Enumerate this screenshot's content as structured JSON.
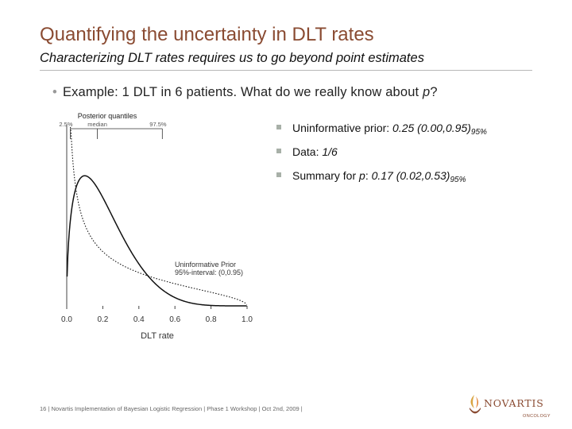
{
  "slide": {
    "title": "Quantifying the uncertainty in DLT rates",
    "subtitle": "Characterizing DLT rates requires us to go beyond point estimates",
    "main_bullet": {
      "text_a": "Example: 1 DLT in 6 patients. What do we really know about ",
      "var_p": "p",
      "text_b": "?"
    }
  },
  "bullets": {
    "b1": {
      "label": "Uninformative prior: ",
      "value": "0.25 (0.00,0.95)",
      "sub": "95%"
    },
    "b2": {
      "label": "Data: ",
      "value": "1/6"
    },
    "b3": {
      "label": "Summary for ",
      "var_p": "p",
      "colon": ": ",
      "value": "0.17 (0.02,0.53)",
      "sub": "95%"
    }
  },
  "chart_data": {
    "type": "line",
    "xlabel": "DLT rate",
    "x_ticks": [
      "0.0",
      "0.2",
      "0.4",
      "0.6",
      "0.8",
      "1.0"
    ],
    "xlim": [
      0,
      1
    ],
    "posterior_quantiles": {
      "title": "Posterior quantiles",
      "labels": [
        "2.5%",
        "median",
        "97.5%"
      ],
      "values": [
        0.02,
        0.17,
        0.53
      ]
    },
    "series": [
      {
        "name": "Posterior",
        "style": "solid",
        "distribution": "beta",
        "a": 1.5,
        "b": 5.5
      },
      {
        "name": "Uninformative Prior",
        "style": "dotted",
        "distribution": "beta",
        "a": 0.5,
        "b": 1.5
      }
    ],
    "annotation": {
      "line1": "Uninformative Prior",
      "line2": "95%-interval: (0,0.95)"
    }
  },
  "footer": "16 | Novartis Implementation of Bayesian Logistic Regression | Phase 1 Workshop | Oct 2nd, 2009 |",
  "logo": {
    "brand": "NOVARTIS",
    "division": "ONCOLOGY",
    "brand_color": "#8a4b32"
  }
}
